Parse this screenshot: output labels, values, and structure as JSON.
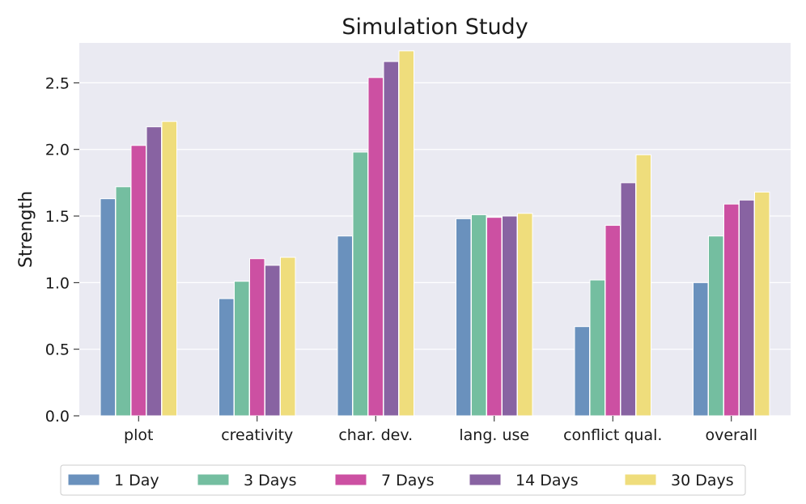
{
  "chart_data": {
    "type": "bar",
    "title": "Simulation Study",
    "xlabel": "",
    "ylabel": "Strength",
    "ylim": [
      0,
      2.8
    ],
    "yticks": [
      "0.0",
      "0.5",
      "1.0",
      "1.5",
      "2.0",
      "2.5"
    ],
    "grid": true,
    "legend_position": "bottom",
    "categories": [
      "plot",
      "creativity",
      "char. dev.",
      "lang. use",
      "conflict qual.",
      "overall"
    ],
    "series": [
      {
        "name": "1 Day",
        "color": "#6a91bd",
        "values": [
          1.63,
          0.88,
          1.35,
          1.48,
          0.67,
          1.0
        ]
      },
      {
        "name": "3 Days",
        "color": "#74bea0",
        "values": [
          1.72,
          1.01,
          1.98,
          1.51,
          1.02,
          1.35
        ]
      },
      {
        "name": "7 Days",
        "color": "#cc50a2",
        "values": [
          2.03,
          1.18,
          2.54,
          1.49,
          1.43,
          1.59
        ]
      },
      {
        "name": "14 Days",
        "color": "#8863a2",
        "values": [
          2.17,
          1.13,
          2.66,
          1.5,
          1.75,
          1.62
        ]
      },
      {
        "name": "30 Days",
        "color": "#efdd7c",
        "values": [
          2.21,
          1.19,
          2.74,
          1.52,
          1.96,
          1.68
        ]
      }
    ]
  }
}
